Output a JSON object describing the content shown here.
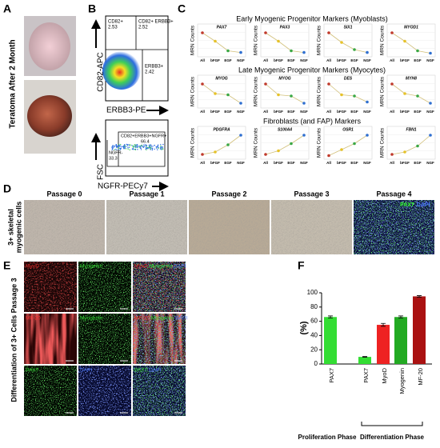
{
  "panel_a": {
    "letter": "A",
    "title": "Teratoma After 2 Month"
  },
  "panel_b": {
    "letter": "B",
    "top": {
      "y_label": "CD82-APC",
      "x_label": "ERBB3-PE",
      "gates": [
        {
          "name": "CD82+",
          "value": 2.53
        },
        {
          "name": "CD82+ ERBB3+",
          "value": 2.52
        },
        {
          "name": "ERBB3+",
          "value": 2.42
        }
      ]
    },
    "bottom": {
      "y_label": "FSC",
      "x_label": "NGFR-PECy7",
      "gates": [
        {
          "name": "CD82+ERBB3+NGFR+",
          "value": 66.4
        },
        {
          "name": "NGFR-",
          "value": 33.3
        }
      ]
    }
  },
  "panel_c": {
    "letter": "C",
    "y_label": "MRN Counts",
    "categories": [
      "All",
      "bFGF",
      "EGF",
      "NGF"
    ],
    "point_colors": [
      "#c0392b",
      "#e6c229",
      "#3aa845",
      "#2f6fd0"
    ],
    "line_color": "#d2c07a",
    "ylim": [
      0,
      100
    ],
    "groups": [
      {
        "title": "Early Myogenic Progenitor Markers (Myoblasts)",
        "genes": [
          {
            "name": "PAX7",
            "values": [
              90,
              55,
              15,
              8
            ]
          },
          {
            "name": "PAX3",
            "values": [
              90,
              55,
              15,
              8
            ]
          },
          {
            "name": "SIX1",
            "values": [
              90,
              50,
              20,
              8
            ]
          },
          {
            "name": "MYOD1",
            "values": [
              90,
              55,
              15,
              5
            ]
          }
        ]
      },
      {
        "title": "Late Myogenic Progenitor Markers (Myocytes)",
        "genes": [
          {
            "name": "MYOG",
            "values": [
              90,
              50,
              45,
              10
            ]
          },
          {
            "name": "MYOG",
            "values": [
              90,
              45,
              40,
              10
            ]
          },
          {
            "name": "DES",
            "values": [
              90,
              45,
              40,
              15
            ]
          },
          {
            "name": "MYH8",
            "values": [
              90,
              50,
              40,
              10
            ]
          }
        ]
      },
      {
        "title": "Fibroblasts (and FAP) Markers",
        "genes": [
          {
            "name": "PDGFRA",
            "values": [
              10,
              20,
              50,
              90
            ]
          },
          {
            "name": "S100A4",
            "values": [
              10,
              25,
              55,
              90
            ]
          },
          {
            "name": "OSR1",
            "values": [
              5,
              30,
              55,
              90
            ]
          },
          {
            "name": "FBN1",
            "values": [
              10,
              20,
              45,
              90
            ]
          }
        ]
      }
    ]
  },
  "panel_d": {
    "letter": "D",
    "y_label": [
      "3+ skeletal",
      "myogenic cells"
    ],
    "passages": [
      "Passage 0",
      "Passage 1",
      "Passage 2",
      "Passage 3",
      "Passage 4"
    ],
    "stain": [
      {
        "text": "PAX7",
        "color": "#33ff33"
      },
      {
        "text": "DAPI",
        "color": "#4a78ff"
      }
    ]
  },
  "panel_e": {
    "letter": "E",
    "y_label": "Differentiation of 3+ Cells Passage 3",
    "cells": [
      [
        {
          "text": "MyoD",
          "color": "#d02020"
        }
      ],
      [
        {
          "text": "Myogenin",
          "color": "#33dd33"
        }
      ],
      [
        {
          "text": "MyoD",
          "color": "#d02020"
        },
        {
          "text": "Myogenin",
          "color": "#33dd33"
        },
        {
          "text": "DAPI",
          "color": "#4a78ff"
        }
      ],
      [
        {
          "text": "MF-20",
          "color": "#ff3030"
        }
      ],
      [
        {
          "text": "Myogenin",
          "color": "#33dd33"
        }
      ],
      [
        {
          "text": "MF-20",
          "color": "#ff3030"
        },
        {
          "text": "Myogenin",
          "color": "#33dd33"
        },
        {
          "text": "DAPI",
          "color": "#4a78ff"
        }
      ],
      [
        {
          "text": "PAX7",
          "color": "#33dd33"
        }
      ],
      [
        {
          "text": "DAPI",
          "color": "#4a78ff"
        }
      ],
      [
        {
          "text": "PAX7",
          "color": "#33dd33"
        },
        {
          "text": "DAPI",
          "color": "#4a78ff"
        }
      ]
    ]
  },
  "panel_f": {
    "letter": "F"
  },
  "chart_data": {
    "type": "bar",
    "y_label": "(%)",
    "categories": [
      "PAX7",
      "PAX7",
      "MyoD",
      "Myogenin",
      "MF-20"
    ],
    "values": [
      66,
      10,
      55,
      66,
      95
    ],
    "errors": [
      1.5,
      0.5,
      2,
      1.5,
      1
    ],
    "colors": [
      "#33dd33",
      "#33dd33",
      "#ee2222",
      "#22aa22",
      "#aa1111"
    ],
    "ylim": [
      0,
      100
    ],
    "yticks": [
      0,
      20,
      40,
      60,
      80,
      100
    ],
    "groups": [
      {
        "name": "Proliferation Phase",
        "categories": [
          0
        ]
      },
      {
        "name": "Differentiation Phase",
        "categories": [
          1,
          2,
          3,
          4
        ]
      }
    ]
  }
}
